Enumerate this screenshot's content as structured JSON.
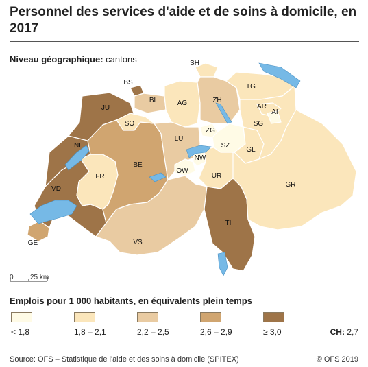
{
  "title": "Personnel des services d'aide et de soins à domicile, en 2017",
  "geo_level": {
    "label": "Niveau géographique:",
    "value": "cantons"
  },
  "scale_bar": {
    "zero": "0",
    "distance": "25 km"
  },
  "legend": {
    "title": "Emplois pour 1 000 habitants, en équivalents plein temps",
    "classes": [
      {
        "label": "< 1,8",
        "color": "#fffbe6"
      },
      {
        "label": "1,8 – 2,1",
        "color": "#fbe6bb"
      },
      {
        "label": "2,2 – 2,5",
        "color": "#e9cba2"
      },
      {
        "label": "2,6 – 2,9",
        "color": "#d0a570"
      },
      {
        "label": "≥ 3,0",
        "color": "#9e7448"
      }
    ],
    "ch_label": "CH:",
    "ch_value": "2,7"
  },
  "colors": {
    "lake": "#76b9e6",
    "border": "#ffffff",
    "outline": "#8a7a60"
  },
  "cantons": [
    {
      "code": "GE",
      "class": 3
    },
    {
      "code": "VD",
      "class": 4
    },
    {
      "code": "NE",
      "class": 4
    },
    {
      "code": "JU",
      "class": 4
    },
    {
      "code": "FR",
      "class": 1
    },
    {
      "code": "BE",
      "class": 3
    },
    {
      "code": "SO",
      "class": 1
    },
    {
      "code": "BS",
      "class": 4
    },
    {
      "code": "BL",
      "class": 2
    },
    {
      "code": "AG",
      "class": 1
    },
    {
      "code": "SH",
      "class": 1
    },
    {
      "code": "ZH",
      "class": 2
    },
    {
      "code": "TG",
      "class": 1
    },
    {
      "code": "LU",
      "class": 2
    },
    {
      "code": "ZG",
      "class": 0
    },
    {
      "code": "SZ",
      "class": 0
    },
    {
      "code": "GL",
      "class": 1
    },
    {
      "code": "SG",
      "class": 1
    },
    {
      "code": "AR",
      "class": 1
    },
    {
      "code": "AI",
      "class": 0
    },
    {
      "code": "OW",
      "class": 0
    },
    {
      "code": "NW",
      "class": 0
    },
    {
      "code": "UR",
      "class": 1
    },
    {
      "code": "VS",
      "class": 2
    },
    {
      "code": "TI",
      "class": 4
    },
    {
      "code": "GR",
      "class": 1
    }
  ],
  "footer": {
    "source": "Source: OFS – Statistique de l'aide et des soins à domicile (SPITEX)",
    "copyright": "© OFS 2019"
  }
}
